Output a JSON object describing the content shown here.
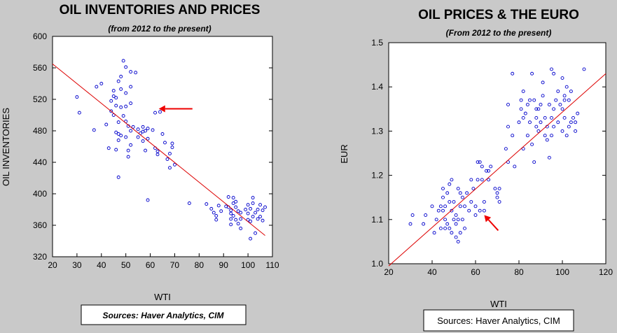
{
  "charts": [
    {
      "title": "OIL INVENTORIES AND PRICES",
      "subtitle": "(from 2012 to the present)",
      "source": "Sources:  Haver Analytics, CIM"
    },
    {
      "title": "OIL PRICES & THE EURO",
      "subtitle": "(From 2012 to the present)",
      "source": "Sources:  Haver Analytics, CIM"
    }
  ],
  "chart_data": [
    {
      "type": "scatter",
      "xlabel": "WTI",
      "ylabel": "OIL INVENTORIES",
      "xlim": [
        20,
        110
      ],
      "ylim": [
        320,
        600
      ],
      "xticks": [
        20,
        30,
        40,
        50,
        60,
        70,
        80,
        90,
        100,
        110
      ],
      "yticks": [
        320,
        360,
        400,
        440,
        480,
        520,
        560,
        600
      ],
      "grid": false,
      "marker_color": "#0000cc",
      "trend_color": "#dd0000",
      "arrow_color": "#ee0000",
      "trendline": {
        "x": [
          20,
          107
        ],
        "y": [
          565,
          347
        ]
      },
      "arrow_point": {
        "x": 63.5,
        "y": 508
      },
      "points": [
        [
          30,
          523
        ],
        [
          31,
          503
        ],
        [
          37,
          481
        ],
        [
          38,
          536
        ],
        [
          40,
          540
        ],
        [
          42,
          488
        ],
        [
          43,
          458
        ],
        [
          44,
          518
        ],
        [
          44,
          505
        ],
        [
          45,
          531
        ],
        [
          45,
          524
        ],
        [
          46,
          522
        ],
        [
          45,
          500
        ],
        [
          46,
          512
        ],
        [
          46,
          478
        ],
        [
          46,
          456
        ],
        [
          47,
          468
        ],
        [
          47,
          476
        ],
        [
          47,
          491
        ],
        [
          47,
          543
        ],
        [
          47,
          421
        ],
        [
          48,
          533
        ],
        [
          48,
          510
        ],
        [
          48,
          549
        ],
        [
          48,
          474
        ],
        [
          49,
          499
        ],
        [
          49,
          569
        ],
        [
          50,
          561
        ],
        [
          50,
          528
        ],
        [
          50,
          511
        ],
        [
          50,
          492
        ],
        [
          50,
          472
        ],
        [
          51,
          486
        ],
        [
          51,
          447
        ],
        [
          51,
          455
        ],
        [
          52,
          555
        ],
        [
          52,
          536
        ],
        [
          52,
          515
        ],
        [
          52,
          480
        ],
        [
          52,
          462
        ],
        [
          53,
          485
        ],
        [
          54,
          554
        ],
        [
          55,
          482
        ],
        [
          55,
          472
        ],
        [
          56,
          477
        ],
        [
          57,
          485
        ],
        [
          57,
          467
        ],
        [
          57,
          479
        ],
        [
          58,
          480
        ],
        [
          58,
          455
        ],
        [
          59,
          483
        ],
        [
          59,
          470
        ],
        [
          59,
          392
        ],
        [
          61,
          481
        ],
        [
          62,
          458
        ],
        [
          62,
          503
        ],
        [
          63,
          454
        ],
        [
          63,
          450
        ],
        [
          64,
          504
        ],
        [
          65,
          476
        ],
        [
          66,
          465
        ],
        [
          67,
          444
        ],
        [
          68,
          433
        ],
        [
          68,
          451
        ],
        [
          69,
          464
        ],
        [
          69,
          459
        ],
        [
          70,
          437
        ],
        [
          76,
          388
        ],
        [
          83,
          387
        ],
        [
          85,
          381
        ],
        [
          86,
          376
        ],
        [
          87,
          372
        ],
        [
          87,
          367
        ],
        [
          88,
          385
        ],
        [
          89,
          378
        ],
        [
          91,
          384
        ],
        [
          92,
          396
        ],
        [
          92,
          383
        ],
        [
          93,
          379
        ],
        [
          93,
          375
        ],
        [
          93,
          368
        ],
        [
          93,
          361
        ],
        [
          94,
          372
        ],
        [
          94,
          395
        ],
        [
          94,
          388
        ],
        [
          95,
          383
        ],
        [
          95,
          367
        ],
        [
          95,
          390
        ],
        [
          96,
          378
        ],
        [
          96,
          362
        ],
        [
          97,
          376
        ],
        [
          97,
          368
        ],
        [
          97,
          356
        ],
        [
          99,
          380
        ],
        [
          100,
          375
        ],
        [
          100,
          367
        ],
        [
          100,
          386
        ],
        [
          101,
          343
        ],
        [
          101,
          381
        ],
        [
          101,
          365
        ],
        [
          102,
          371
        ],
        [
          102,
          388
        ],
        [
          102,
          395
        ],
        [
          103,
          376
        ],
        [
          103,
          350
        ],
        [
          104,
          380
        ],
        [
          104,
          368
        ],
        [
          105,
          371
        ],
        [
          105,
          386
        ],
        [
          106,
          366
        ],
        [
          106,
          379
        ],
        [
          107,
          383
        ]
      ]
    },
    {
      "type": "scatter",
      "xlabel": "WTI",
      "ylabel": "EUR",
      "xlim": [
        20,
        120
      ],
      "ylim": [
        1.0,
        1.5
      ],
      "xticks": [
        20,
        40,
        60,
        80,
        100,
        120
      ],
      "yticks": [
        1.0,
        1.1,
        1.2,
        1.3,
        1.4,
        1.5
      ],
      "grid": false,
      "marker_color": "#0000cc",
      "trend_color": "#dd0000",
      "arrow_color": "#ee0000",
      "trendline": {
        "x": [
          20,
          120
        ],
        "y": [
          0.995,
          1.43
        ]
      },
      "arrow_point": {
        "x": 64,
        "y": 1.11
      },
      "points": [
        [
          30,
          1.09
        ],
        [
          31,
          1.11
        ],
        [
          36,
          1.09
        ],
        [
          37,
          1.11
        ],
        [
          40,
          1.13
        ],
        [
          41,
          1.07
        ],
        [
          42,
          1.1
        ],
        [
          43,
          1.12
        ],
        [
          44,
          1.08
        ],
        [
          44,
          1.13
        ],
        [
          45,
          1.12
        ],
        [
          45,
          1.15
        ],
        [
          45,
          1.17
        ],
        [
          46,
          1.1
        ],
        [
          46,
          1.13
        ],
        [
          46,
          1.08
        ],
        [
          47,
          1.09
        ],
        [
          47,
          1.16
        ],
        [
          48,
          1.14
        ],
        [
          48,
          1.18
        ],
        [
          48,
          1.08
        ],
        [
          49,
          1.19
        ],
        [
          49,
          1.12
        ],
        [
          49,
          1.07
        ],
        [
          50,
          1.1
        ],
        [
          50,
          1.14
        ],
        [
          51,
          1.11
        ],
        [
          51,
          1.06
        ],
        [
          51,
          1.09
        ],
        [
          52,
          1.1
        ],
        [
          52,
          1.17
        ],
        [
          52,
          1.05
        ],
        [
          53,
          1.13
        ],
        [
          53,
          1.07
        ],
        [
          53,
          1.16
        ],
        [
          54,
          1.1
        ],
        [
          54,
          1.15
        ],
        [
          55,
          1.08
        ],
        [
          55,
          1.13
        ],
        [
          56,
          1.16
        ],
        [
          57,
          1.12
        ],
        [
          58,
          1.19
        ],
        [
          58,
          1.14
        ],
        [
          59,
          1.17
        ],
        [
          60,
          1.13
        ],
        [
          60,
          1.11
        ],
        [
          61,
          1.23
        ],
        [
          61,
          1.19
        ],
        [
          62,
          1.23
        ],
        [
          62,
          1.12
        ],
        [
          63,
          1.22
        ],
        [
          63,
          1.19
        ],
        [
          64,
          1.12
        ],
        [
          64,
          1.14
        ],
        [
          65,
          1.21
        ],
        [
          66,
          1.21
        ],
        [
          66,
          1.19
        ],
        [
          67,
          1.22
        ],
        [
          69,
          1.17
        ],
        [
          70,
          1.15
        ],
        [
          70,
          1.16
        ],
        [
          71,
          1.14
        ],
        [
          71,
          1.17
        ],
        [
          74,
          1.26
        ],
        [
          75,
          1.31
        ],
        [
          75,
          1.23
        ],
        [
          75,
          1.36
        ],
        [
          77,
          1.29
        ],
        [
          77,
          1.43
        ],
        [
          78,
          1.22
        ],
        [
          80,
          1.32
        ],
        [
          81,
          1.37
        ],
        [
          81,
          1.35
        ],
        [
          82,
          1.39
        ],
        [
          82,
          1.26
        ],
        [
          82,
          1.33
        ],
        [
          83,
          1.34
        ],
        [
          84,
          1.29
        ],
        [
          84,
          1.36
        ],
        [
          85,
          1.32
        ],
        [
          85,
          1.37
        ],
        [
          86,
          1.43
        ],
        [
          86,
          1.27
        ],
        [
          87,
          1.23
        ],
        [
          87,
          1.37
        ],
        [
          88,
          1.33
        ],
        [
          88,
          1.31
        ],
        [
          88,
          1.35
        ],
        [
          89,
          1.3
        ],
        [
          89,
          1.35
        ],
        [
          90,
          1.36
        ],
        [
          90,
          1.32
        ],
        [
          91,
          1.38
        ],
        [
          91,
          1.41
        ],
        [
          92,
          1.33
        ],
        [
          92,
          1.29
        ],
        [
          93,
          1.31
        ],
        [
          93,
          1.28
        ],
        [
          94,
          1.36
        ],
        [
          94,
          1.24
        ],
        [
          95,
          1.29
        ],
        [
          95,
          1.44
        ],
        [
          95,
          1.33
        ],
        [
          96,
          1.35
        ],
        [
          96,
          1.31
        ],
        [
          96,
          1.43
        ],
        [
          97,
          1.37
        ],
        [
          98,
          1.32
        ],
        [
          98,
          1.39
        ],
        [
          99,
          1.36
        ],
        [
          100,
          1.3
        ],
        [
          100,
          1.42
        ],
        [
          100,
          1.35
        ],
        [
          101,
          1.37
        ],
        [
          101,
          1.33
        ],
        [
          101,
          1.38
        ],
        [
          102,
          1.29
        ],
        [
          102,
          1.4
        ],
        [
          103,
          1.31
        ],
        [
          103,
          1.37
        ],
        [
          104,
          1.32
        ],
        [
          104,
          1.39
        ],
        [
          105,
          1.33
        ],
        [
          106,
          1.3
        ],
        [
          106,
          1.32
        ],
        [
          107,
          1.34
        ],
        [
          110,
          1.44
        ]
      ]
    }
  ]
}
